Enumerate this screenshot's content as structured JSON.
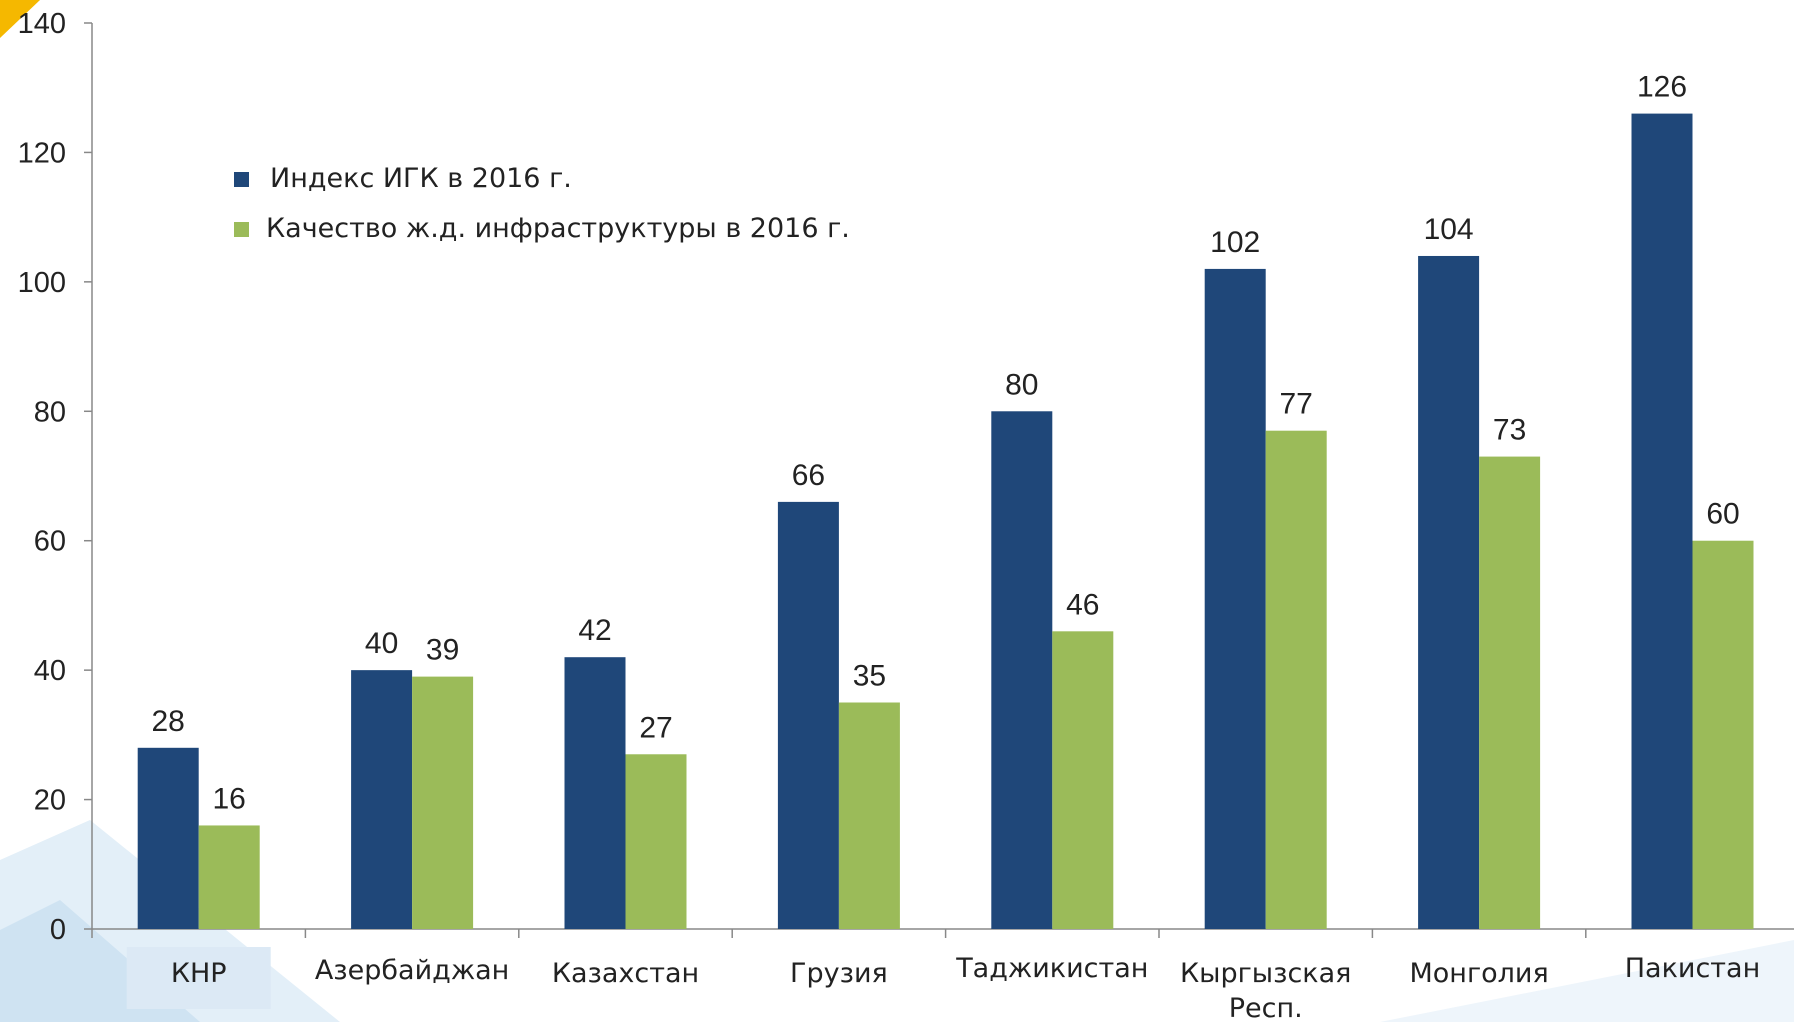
{
  "chart_data": {
    "type": "bar",
    "title": "",
    "xlabel": "",
    "ylabel": "",
    "ylim": [
      0,
      140
    ],
    "yticks": [
      0,
      20,
      40,
      60,
      80,
      100,
      120,
      140
    ],
    "grid": false,
    "legend_position": "top-left",
    "categories": [
      "КНР",
      "Азербайджан",
      "Казахстан",
      "Грузия",
      "Таджикистан",
      "Кыргызская Респ.",
      "Монголия",
      "Пакистан"
    ],
    "series": [
      {
        "name": "Индекс ИГК в 2016 г.",
        "color": "#1f4779",
        "values": [
          28,
          40,
          42,
          66,
          80,
          102,
          104,
          126
        ]
      },
      {
        "name": "Качество ж.д. инфраструктуры в 2016 г.",
        "color": "#9bbb59",
        "values": [
          16,
          39,
          27,
          35,
          46,
          77,
          73,
          60
        ]
      }
    ],
    "highlight_category": {
      "index": 0,
      "color": "#dce9f5"
    }
  }
}
